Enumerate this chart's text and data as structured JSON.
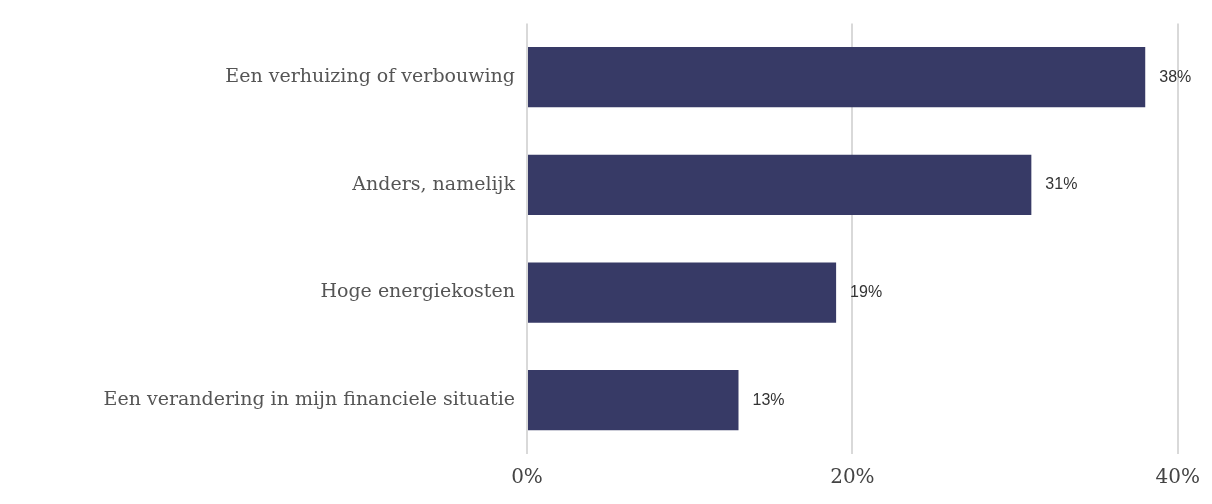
{
  "chart_data": {
    "type": "bar",
    "orientation": "horizontal",
    "categories": [
      "Een verhuizing of verbouwing",
      "Anders, namelijk",
      "Hoge energiekosten",
      "Een verandering in mijn financiele situatie"
    ],
    "values": [
      38,
      31,
      19,
      13
    ],
    "color": "#373a66",
    "value_labels": [
      "38%",
      "31%",
      "19%",
      "13%"
    ],
    "xlim": [
      0,
      40
    ],
    "xticks": [
      {
        "value": 0,
        "label": "0%"
      },
      {
        "value": 20,
        "label": "20%"
      },
      {
        "value": 40,
        "label": "40%"
      }
    ],
    "grid": "x",
    "legend": false
  }
}
